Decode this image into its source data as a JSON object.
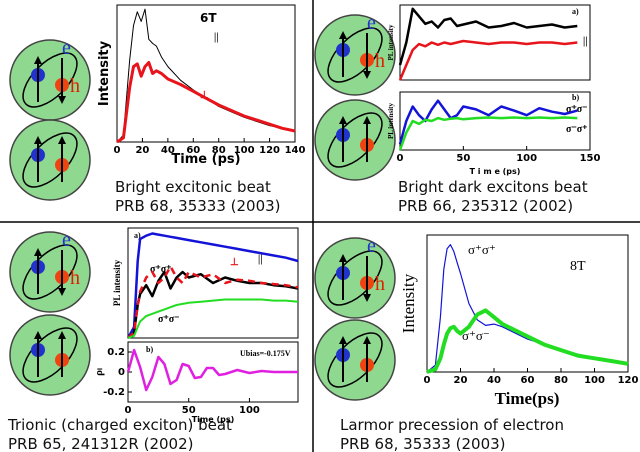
{
  "chart_data": [
    {
      "type": "line",
      "xlim": [
        0,
        140
      ],
      "ylim": [
        0,
        1
      ],
      "xticks": [
        0,
        20,
        40,
        60,
        80,
        100,
        120,
        140
      ],
      "xlabel": "Time (ps)",
      "ylabel": "Intensity",
      "annotations": [
        "6T"
      ],
      "x": [
        0,
        5,
        10,
        13,
        16,
        19,
        22,
        25,
        28,
        31,
        35,
        40,
        50,
        60,
        70,
        80,
        90,
        100,
        110,
        120,
        130,
        140
      ],
      "series": [
        {
          "name": "||",
          "color": "#000000",
          "values": [
            0,
            0.05,
            0.6,
            0.85,
            0.95,
            0.88,
            0.97,
            0.75,
            0.72,
            0.7,
            0.62,
            0.55,
            0.45,
            0.38,
            0.32,
            0.26,
            0.22,
            0.18,
            0.15,
            0.12,
            0.1,
            0.08
          ]
        },
        {
          "name": "⊥",
          "color": "#e8141b",
          "values": [
            0,
            0.03,
            0.4,
            0.55,
            0.57,
            0.48,
            0.55,
            0.58,
            0.5,
            0.52,
            0.5,
            0.46,
            0.42,
            0.37,
            0.32,
            0.27,
            0.23,
            0.19,
            0.16,
            0.13,
            0.1,
            0.08
          ]
        }
      ]
    },
    {
      "type": "line",
      "xlim": [
        0,
        150
      ],
      "ylim": [
        0,
        1
      ],
      "ylabel": "PL intensity",
      "annotations": [
        "a)"
      ],
      "x": [
        0,
        5,
        10,
        15,
        20,
        25,
        30,
        35,
        40,
        45,
        50,
        60,
        70,
        80,
        90,
        100,
        110,
        120,
        130,
        140
      ],
      "series": [
        {
          "name": "||",
          "color": "#000000",
          "values": [
            0.2,
            0.5,
            0.95,
            0.85,
            0.75,
            0.78,
            0.7,
            0.8,
            0.82,
            0.72,
            0.74,
            0.78,
            0.7,
            0.72,
            0.76,
            0.7,
            0.72,
            0.74,
            0.7,
            0.72
          ]
        },
        {
          "color": "#e8141b",
          "values": [
            0,
            0.2,
            0.4,
            0.48,
            0.45,
            0.5,
            0.47,
            0.5,
            0.48,
            0.5,
            0.52,
            0.5,
            0.48,
            0.5,
            0.5,
            0.48,
            0.5,
            0.5,
            0.48,
            0.5
          ]
        }
      ]
    },
    {
      "type": "line",
      "xlim": [
        0,
        150
      ],
      "ylim": [
        0,
        1
      ],
      "xticks": [
        0,
        50,
        100,
        150
      ],
      "xlabel": "T i m e (ps)",
      "ylabel": "PL intensity",
      "annotations": [
        "b)"
      ],
      "x": [
        0,
        5,
        10,
        15,
        20,
        25,
        30,
        35,
        40,
        45,
        50,
        60,
        70,
        80,
        90,
        100,
        110,
        120,
        130,
        140
      ],
      "series": [
        {
          "name": "σ⁺σ⁻",
          "color": "#1414d8",
          "values": [
            0.1,
            0.5,
            0.75,
            0.6,
            0.5,
            0.7,
            0.85,
            0.7,
            0.55,
            0.6,
            0.75,
            0.7,
            0.6,
            0.75,
            0.68,
            0.6,
            0.72,
            0.66,
            0.62,
            0.68
          ]
        },
        {
          "name": "σ⁻σ⁺",
          "color": "#22dd22",
          "values": [
            0,
            0.3,
            0.5,
            0.45,
            0.52,
            0.5,
            0.55,
            0.52,
            0.54,
            0.55,
            0.53,
            0.55,
            0.56,
            0.55,
            0.56,
            0.55,
            0.56,
            0.55,
            0.56,
            0.55
          ]
        }
      ]
    },
    {
      "type": "line",
      "xlim": [
        0,
        140
      ],
      "ylim": [
        0,
        1
      ],
      "ylabel": "PL intensity",
      "annotations": [
        "a)"
      ],
      "x": [
        0,
        5,
        8,
        10,
        15,
        20,
        25,
        30,
        35,
        40,
        45,
        50,
        60,
        70,
        80,
        90,
        100,
        110,
        120,
        130,
        140
      ],
      "series": [
        {
          "name": "σ⁺σ⁺",
          "color": "#1414d8",
          "values": [
            0,
            0.1,
            0.7,
            0.9,
            0.93,
            0.95,
            0.94,
            0.93,
            0.92,
            0.91,
            0.9,
            0.89,
            0.87,
            0.85,
            0.83,
            0.81,
            0.79,
            0.77,
            0.75,
            0.73,
            0.7
          ]
        },
        {
          "name": "||",
          "color": "#000000",
          "values": [
            0,
            0.05,
            0.3,
            0.4,
            0.48,
            0.38,
            0.52,
            0.6,
            0.45,
            0.55,
            0.6,
            0.55,
            0.58,
            0.5,
            0.55,
            0.52,
            0.5,
            0.5,
            0.48,
            0.47,
            0.45
          ]
        },
        {
          "name": "⊥",
          "color": "#e8141b",
          "dashed": true,
          "values": [
            0,
            0.05,
            0.3,
            0.42,
            0.55,
            0.6,
            0.5,
            0.55,
            0.65,
            0.55,
            0.5,
            0.6,
            0.55,
            0.58,
            0.5,
            0.53,
            0.52,
            0.5,
            0.49,
            0.48,
            0.46
          ]
        },
        {
          "name": "σ⁺σ⁻",
          "color": "#22dd22",
          "values": [
            0,
            0.02,
            0.1,
            0.15,
            0.2,
            0.22,
            0.24,
            0.26,
            0.28,
            0.3,
            0.31,
            0.32,
            0.33,
            0.34,
            0.35,
            0.35,
            0.35,
            0.35,
            0.34,
            0.34,
            0.33
          ]
        }
      ]
    },
    {
      "type": "line",
      "xlim": [
        0,
        140
      ],
      "ylim": [
        -0.3,
        0.3
      ],
      "xticks": [
        0,
        50,
        100
      ],
      "yticks": [
        0.2,
        0,
        -0.2
      ],
      "xlabel": "Time (ps)",
      "ylabel": "ρₗ",
      "annotations": [
        "b)",
        "Ubias=-0.175V"
      ],
      "x": [
        0,
        5,
        10,
        15,
        20,
        25,
        30,
        35,
        40,
        45,
        50,
        55,
        60,
        65,
        70,
        75,
        80,
        90,
        100,
        110,
        120,
        130,
        140
      ],
      "series": [
        {
          "color": "#e020e0",
          "values": [
            0,
            0.22,
            0.05,
            -0.18,
            -0.05,
            0.15,
            0.08,
            -0.12,
            -0.08,
            0.08,
            0.06,
            -0.06,
            -0.05,
            0.04,
            0.04,
            -0.03,
            -0.02,
            0.02,
            -0.01,
            0.01,
            0,
            0,
            0
          ]
        }
      ]
    },
    {
      "type": "line",
      "xlim": [
        0,
        120
      ],
      "ylim": [
        0,
        1
      ],
      "xticks": [
        0,
        20,
        40,
        60,
        80,
        100,
        120
      ],
      "xlabel": "Time(ps)",
      "ylabel": "Intensity",
      "annotations": [
        "8T"
      ],
      "x": [
        0,
        5,
        8,
        10,
        12,
        14,
        16,
        18,
        20,
        25,
        30,
        35,
        40,
        45,
        50,
        60,
        70,
        80,
        90,
        100,
        110,
        120
      ],
      "series": [
        {
          "name": "σ⁺σ⁺",
          "color": "#1414d8",
          "values": [
            0,
            0.05,
            0.4,
            0.75,
            0.9,
            0.93,
            0.88,
            0.8,
            0.72,
            0.5,
            0.38,
            0.34,
            0.35,
            0.33,
            0.3,
            0.24,
            0.2,
            0.16,
            0.13,
            0.1,
            0.08,
            0.06
          ]
        },
        {
          "name": "σ⁺σ⁻",
          "color": "#22dd22",
          "values": [
            0,
            0.02,
            0.1,
            0.2,
            0.28,
            0.32,
            0.33,
            0.3,
            0.28,
            0.33,
            0.42,
            0.45,
            0.4,
            0.35,
            0.32,
            0.26,
            0.2,
            0.16,
            0.12,
            0.1,
            0.08,
            0.06
          ]
        }
      ]
    }
  ],
  "diagram": {
    "e": "e",
    "h": "h"
  },
  "captions": [
    [
      "Bright excitonic beat",
      "PRB 68, 35333 (2003)"
    ],
    [
      "Bright dark excitons beat",
      "PRB 66, 235312 (2002)"
    ],
    [
      "Trionic (charged exciton) beat",
      "PRB 65, 241312R (2002)"
    ],
    [
      "Larmor precession of electron",
      "PRB 68, 35333 (2003)"
    ]
  ]
}
